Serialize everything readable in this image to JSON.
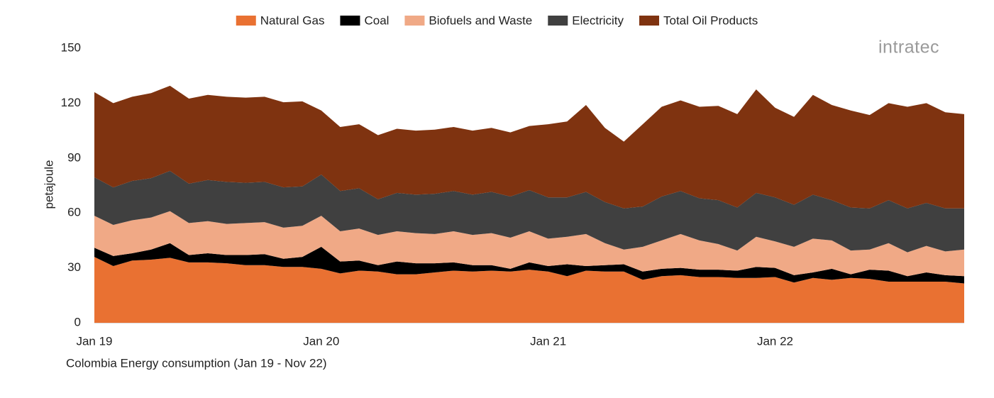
{
  "chart_data": {
    "type": "stacked-area",
    "title": "Colombia Energy consumption (Jan 19 - Nov 22)",
    "y_label": "petajoule",
    "brand": "intratec",
    "categories": [
      "Jan 19",
      null,
      null,
      null,
      null,
      null,
      null,
      null,
      null,
      null,
      null,
      null,
      "Jan 20",
      null,
      null,
      null,
      null,
      null,
      null,
      null,
      null,
      null,
      null,
      null,
      "Jan 21",
      null,
      null,
      null,
      null,
      null,
      null,
      null,
      null,
      null,
      null,
      null,
      "Jan 22",
      null,
      null,
      null,
      null,
      null,
      null,
      null,
      null,
      null,
      null
    ],
    "ylim": [
      0,
      150
    ],
    "yticks": [
      0,
      30,
      60,
      90,
      120,
      150
    ],
    "grid": false,
    "legend": "top",
    "series": [
      {
        "name": "Natural Gas",
        "color": "#e97132",
        "values": [
          36,
          31,
          34,
          34.5,
          35.5,
          33,
          33,
          32.5,
          31.5,
          31.5,
          30.5,
          30.5,
          29.5,
          27,
          28.5,
          28,
          26.5,
          26.5,
          27.5,
          28.5,
          28,
          28.5,
          28,
          29,
          28,
          25.5,
          28.5,
          28,
          28,
          23.5,
          25.5,
          26,
          25,
          25,
          24.5,
          24.5,
          25,
          22,
          24.5,
          23.5,
          24.5,
          24,
          22.5,
          22.5,
          22.5,
          22.5,
          21.5
        ]
      },
      {
        "name": "Coal",
        "color": "#000000",
        "values": [
          5,
          5.5,
          4,
          5.5,
          8,
          4,
          5,
          4.5,
          5.5,
          6,
          4.5,
          5.5,
          12,
          6.5,
          5.5,
          3.5,
          7,
          6,
          5,
          4.5,
          3.5,
          3,
          1.5,
          4,
          3,
          6.5,
          2.5,
          3.5,
          4,
          4.5,
          4,
          4,
          4,
          4,
          4,
          6,
          5,
          4,
          3,
          6,
          2,
          5,
          6,
          3,
          5,
          3.5,
          4
        ]
      },
      {
        "name": "Biofuels and Waste",
        "color": "#f0a986",
        "values": [
          17.5,
          17,
          18,
          17.5,
          17.5,
          17.5,
          17.5,
          17,
          17.5,
          17.5,
          17,
          17,
          17,
          16.5,
          17.5,
          16.5,
          16.5,
          16.5,
          16,
          17,
          16.5,
          17.5,
          17,
          17,
          15,
          15,
          17.5,
          12,
          8,
          13.5,
          15.5,
          18.5,
          16,
          14,
          11,
          16.5,
          14.5,
          15.5,
          18.5,
          15.5,
          13,
          11,
          15,
          13,
          14.5,
          13,
          14.5
        ]
      },
      {
        "name": "Electricity",
        "color": "#404040",
        "values": [
          21,
          20.5,
          21.5,
          21.5,
          22,
          21.5,
          22.5,
          23,
          22,
          22,
          22,
          21.5,
          22.5,
          22,
          22,
          19.5,
          21,
          21,
          22,
          22,
          22,
          22.5,
          22.5,
          22.5,
          22.5,
          21.5,
          23,
          22.5,
          22.5,
          22,
          24,
          23.5,
          23,
          24,
          23.5,
          24,
          24,
          23,
          24,
          22,
          23.5,
          22.5,
          23.5,
          24,
          23.5,
          23.5,
          22.5
        ]
      },
      {
        "name": "Total Oil Products",
        "color": "#7f3310",
        "values": [
          46.5,
          46,
          46,
          46.5,
          46.5,
          46.5,
          46.5,
          46.5,
          46.5,
          46.5,
          46.5,
          46.5,
          35,
          35,
          35,
          35,
          35,
          35,
          35,
          35,
          35,
          35,
          35,
          35,
          40,
          41.5,
          47.5,
          40.5,
          36.5,
          45,
          49,
          49.5,
          50,
          51.5,
          51,
          56.5,
          49,
          48,
          54.5,
          52,
          53,
          51,
          53,
          55.5,
          54.5,
          52.5,
          51.5
        ]
      }
    ]
  }
}
